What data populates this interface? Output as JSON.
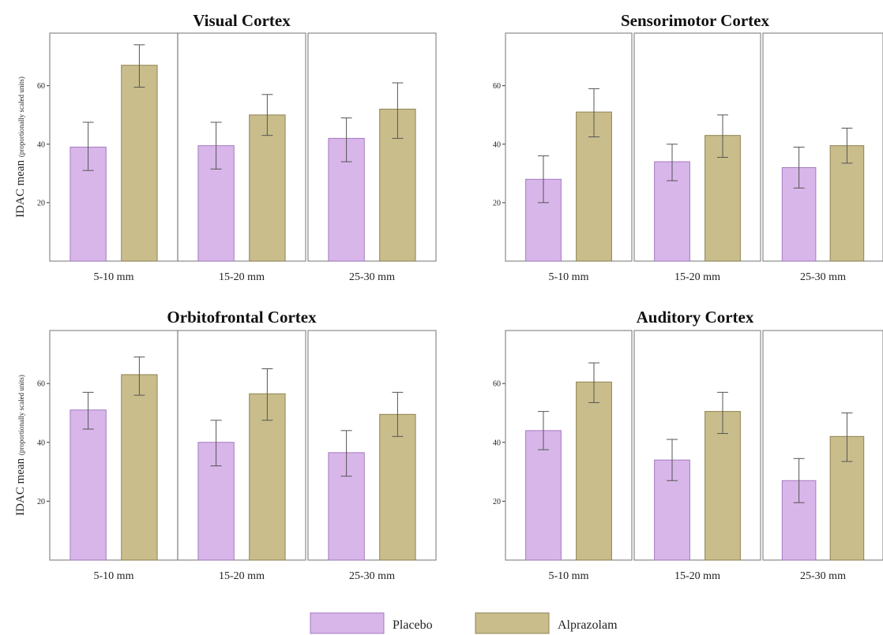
{
  "chart_data": [
    {
      "type": "bar",
      "title": "Visual Cortex",
      "ylabel": "IDAC mean",
      "ylabel_note": "(proportionally scaled units)",
      "ylim": [
        0,
        78
      ],
      "yticks": [
        20,
        40,
        60
      ],
      "categories": [
        "5-10 mm",
        "15-20 mm",
        "25-30 mm"
      ],
      "series": [
        {
          "name": "Placebo",
          "values": [
            39,
            39.5,
            42
          ],
          "error_low": [
            31,
            31.5,
            34
          ],
          "error_high": [
            47.5,
            47.5,
            49
          ]
        },
        {
          "name": "Alprazolam",
          "values": [
            67,
            50,
            52
          ],
          "error_low": [
            59.5,
            43,
            42
          ],
          "error_high": [
            74,
            57,
            61
          ]
        }
      ]
    },
    {
      "type": "bar",
      "title": "Sensorimotor Cortex",
      "ylabel": "",
      "ylim": [
        0,
        78
      ],
      "yticks": [
        20,
        40,
        60
      ],
      "categories": [
        "5-10 mm",
        "15-20 mm",
        "25-30 mm"
      ],
      "series": [
        {
          "name": "Placebo",
          "values": [
            28,
            34,
            32
          ],
          "error_low": [
            20,
            27.5,
            25
          ],
          "error_high": [
            36,
            40,
            39
          ]
        },
        {
          "name": "Alprazolam",
          "values": [
            51,
            43,
            39.5
          ],
          "error_low": [
            42.5,
            35.5,
            33.5
          ],
          "error_high": [
            59,
            50,
            45.5
          ]
        }
      ]
    },
    {
      "type": "bar",
      "title": "Orbitofrontal Cortex",
      "ylabel": "IDAC mean",
      "ylabel_note": "(proportionally scaled units)",
      "ylim": [
        0,
        78
      ],
      "yticks": [
        20,
        40,
        60
      ],
      "categories": [
        "5-10 mm",
        "15-20 mm",
        "25-30 mm"
      ],
      "series": [
        {
          "name": "Placebo",
          "values": [
            51,
            40,
            36.5
          ],
          "error_low": [
            44.5,
            32,
            28.5
          ],
          "error_high": [
            57,
            47.5,
            44
          ]
        },
        {
          "name": "Alprazolam",
          "values": [
            63,
            56.5,
            49.5
          ],
          "error_low": [
            56,
            47.5,
            42
          ],
          "error_high": [
            69,
            65,
            57
          ]
        }
      ]
    },
    {
      "type": "bar",
      "title": "Auditory Cortex",
      "ylabel": "",
      "ylim": [
        0,
        78
      ],
      "yticks": [
        20,
        40,
        60
      ],
      "categories": [
        "5-10 mm",
        "15-20 mm",
        "25-30 mm"
      ],
      "series": [
        {
          "name": "Placebo",
          "values": [
            44,
            34,
            27
          ],
          "error_low": [
            37.5,
            27,
            19.5
          ],
          "error_high": [
            50.5,
            41,
            34.5
          ]
        },
        {
          "name": "Alprazolam",
          "values": [
            60.5,
            50.5,
            42
          ],
          "error_low": [
            53.5,
            43,
            33.5
          ],
          "error_high": [
            67,
            57,
            50
          ]
        }
      ]
    }
  ],
  "legend": {
    "position": "bottom-center",
    "items": [
      {
        "label": "Placebo",
        "color": "#d8b6ea"
      },
      {
        "label": "Alprazolam",
        "color": "#c9bd8c"
      }
    ]
  },
  "colors": {
    "placebo": "#d8b6ea",
    "placebo_edge": "#a57bbf",
    "alprazolam": "#c9bd8c",
    "alprazolam_edge": "#8f8350",
    "frame": "#8a8a8a",
    "error_bar": "#555555"
  }
}
